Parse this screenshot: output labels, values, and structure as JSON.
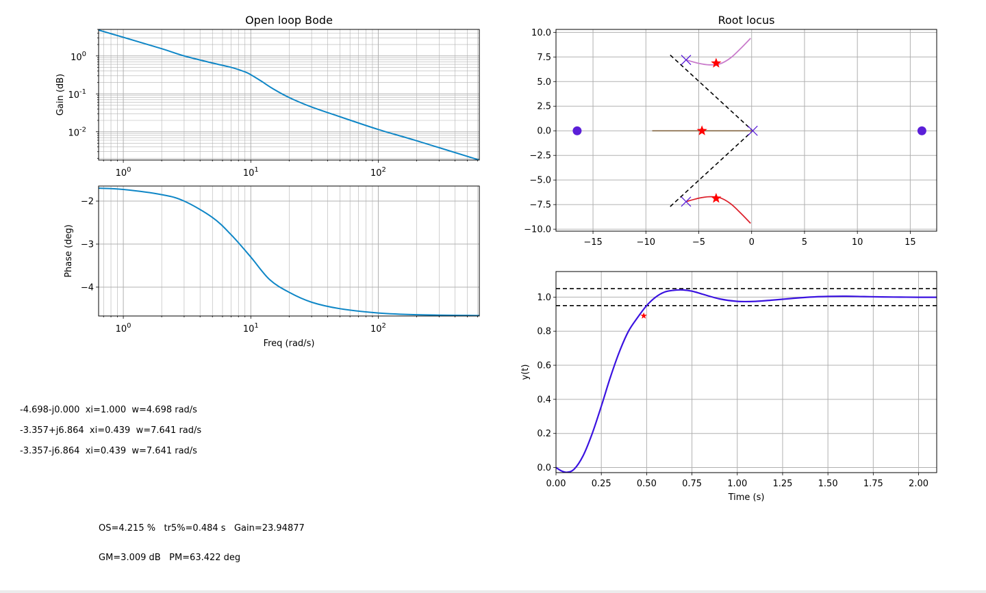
{
  "poles_info": [
    "-4.698-j0.000  xi=1.000  w=4.698 rad/s",
    "-3.357+j6.864  xi=0.439  w=7.641 rad/s",
    "-3.357-j6.864  xi=0.439  w=7.641 rad/s"
  ],
  "summary": {
    "line1": "OS=4.215 %   tr5%=0.484 s   Gain=23.94877",
    "line2": "GM=3.009 dB   PM=63.422 deg"
  },
  "colors": {
    "bode": "#0e86c6",
    "step": "#3a12e0",
    "poles": "#5b1fd8",
    "stars": "#ff0000",
    "branch_upper": "#c97bcb",
    "branch_real": "#8b6f4e",
    "branch_lower": "#dc1f2a"
  },
  "chart_data": [
    {
      "type": "line",
      "title": "Open loop Bode",
      "xlabel": "",
      "ylabel": "Gain (dB)",
      "xscale": "log",
      "yscale": "log",
      "xlim": [
        0.64,
        620
      ],
      "ylim": [
        0.0018,
        5
      ],
      "x_ticklabels": [
        "10^0",
        "10^1",
        "10^2"
      ],
      "y_ticklabels": [
        "10^0",
        "10^-1",
        "10^-2"
      ],
      "grid": true,
      "series": [
        {
          "x": [
            0.64,
            1,
            2,
            3,
            5,
            7,
            9,
            10,
            12,
            15,
            20,
            30,
            50,
            100,
            200,
            620
          ],
          "y": [
            4.8,
            3.1,
            1.55,
            1.0,
            0.65,
            0.5,
            0.38,
            0.32,
            0.22,
            0.135,
            0.08,
            0.045,
            0.025,
            0.0115,
            0.0058,
            0.0018
          ]
        }
      ]
    },
    {
      "type": "line",
      "xlabel": "Freq (rad/s)",
      "ylabel": "Phase (deg)",
      "xscale": "log",
      "xlim": [
        0.64,
        620
      ],
      "ylim": [
        -4.67,
        -1.65
      ],
      "yticks": [
        -2,
        -3,
        -4
      ],
      "y_ticklabels": [
        "−2",
        "−3",
        "−4"
      ],
      "x_ticklabels": [
        "10^0",
        "10^1",
        "10^2"
      ],
      "grid": true,
      "series": [
        {
          "x": [
            0.64,
            1,
            2,
            3,
            5,
            7,
            10,
            14,
            20,
            30,
            50,
            100,
            200,
            620
          ],
          "y": [
            -1.7,
            -1.73,
            -1.85,
            -2.0,
            -2.38,
            -2.78,
            -3.3,
            -3.82,
            -4.12,
            -4.35,
            -4.5,
            -4.6,
            -4.64,
            -4.66
          ]
        }
      ]
    },
    {
      "type": "scatter",
      "title": "Root locus",
      "xlim": [
        -18.5,
        17.5
      ],
      "ylim": [
        -10.2,
        10.3
      ],
      "xticks": [
        -15,
        -10,
        -5,
        0,
        5,
        10,
        15
      ],
      "x_ticklabels": [
        "−15",
        "−10",
        "−5",
        "0",
        "5",
        "10",
        "15"
      ],
      "yticks": [
        10,
        7.5,
        5,
        2.5,
        0,
        -2.5,
        -5,
        -7.5,
        -10
      ],
      "y_ticklabels": [
        "10.0",
        "7.5",
        "5.0",
        "2.5",
        "0.0",
        "−2.5",
        "−5.0",
        "−7.5",
        "−10.0"
      ],
      "grid": true,
      "branches": [
        {
          "color": "branch_upper",
          "points": [
            [
              -6.2,
              7.2
            ],
            [
              -5,
              6.85
            ],
            [
              -4,
              6.7
            ],
            [
              -3,
              6.8
            ],
            [
              -2,
              7.4
            ],
            [
              -1,
              8.4
            ],
            [
              -0.1,
              9.4
            ]
          ]
        },
        {
          "color": "branch_real",
          "points": [
            [
              -9.4,
              0
            ],
            [
              0.1,
              0
            ]
          ]
        },
        {
          "color": "branch_lower",
          "points": [
            [
              -6.2,
              -7.2
            ],
            [
              -5,
              -6.85
            ],
            [
              -4,
              -6.7
            ],
            [
              -3,
              -6.8
            ],
            [
              -2,
              -7.4
            ],
            [
              -1,
              -8.4
            ],
            [
              -0.1,
              -9.4
            ]
          ]
        }
      ],
      "asymptotes": [
        [
          [
            -7.7,
            7.7
          ],
          [
            0.1,
            0
          ]
        ],
        [
          [
            -7.7,
            -7.7
          ],
          [
            0.1,
            0
          ]
        ]
      ],
      "poles": [
        [
          -6.2,
          7.2
        ],
        [
          -6.2,
          -7.2
        ],
        [
          0.1,
          0
        ]
      ],
      "zeros": [
        [
          -16.5,
          0
        ],
        [
          16.1,
          0
        ]
      ],
      "closed_loop_poles": [
        [
          -4.698,
          0
        ],
        [
          -3.357,
          6.864
        ],
        [
          -3.357,
          -6.864
        ]
      ]
    },
    {
      "type": "line",
      "xlabel": "Time (s)",
      "ylabel": "y(t)",
      "xlim": [
        0,
        2.1
      ],
      "ylim": [
        -0.03,
        1.15
      ],
      "xticks": [
        0,
        0.25,
        0.5,
        0.75,
        1.0,
        1.25,
        1.5,
        1.75,
        2.0
      ],
      "x_ticklabels": [
        "0.00",
        "0.25",
        "0.50",
        "0.75",
        "1.00",
        "1.25",
        "1.50",
        "1.75",
        "2.00"
      ],
      "yticks": [
        0,
        0.2,
        0.4,
        0.6,
        0.8,
        1.0
      ],
      "y_ticklabels": [
        "0.0",
        "0.2",
        "0.4",
        "0.6",
        "0.8",
        "1.0"
      ],
      "grid": true,
      "hlines": [
        1.05,
        0.95
      ],
      "marker": [
        0.484,
        0.89
      ],
      "series": [
        {
          "x": [
            0,
            0.03,
            0.06,
            0.1,
            0.15,
            0.2,
            0.25,
            0.3,
            0.35,
            0.4,
            0.45,
            0.5,
            0.55,
            0.6,
            0.65,
            0.7,
            0.75,
            0.8,
            0.9,
            1.0,
            1.1,
            1.2,
            1.3,
            1.4,
            1.5,
            1.6,
            1.7,
            1.8,
            1.9,
            2.0,
            2.1
          ],
          "y": [
            0,
            -0.02,
            -0.028,
            -0.01,
            0.07,
            0.2,
            0.36,
            0.53,
            0.68,
            0.8,
            0.88,
            0.95,
            1.0,
            1.03,
            1.04,
            1.042,
            1.035,
            1.02,
            0.99,
            0.975,
            0.975,
            0.983,
            0.992,
            1.0,
            1.004,
            1.005,
            1.003,
            1.001,
            1.0,
            0.999,
            0.999
          ]
        }
      ]
    }
  ]
}
